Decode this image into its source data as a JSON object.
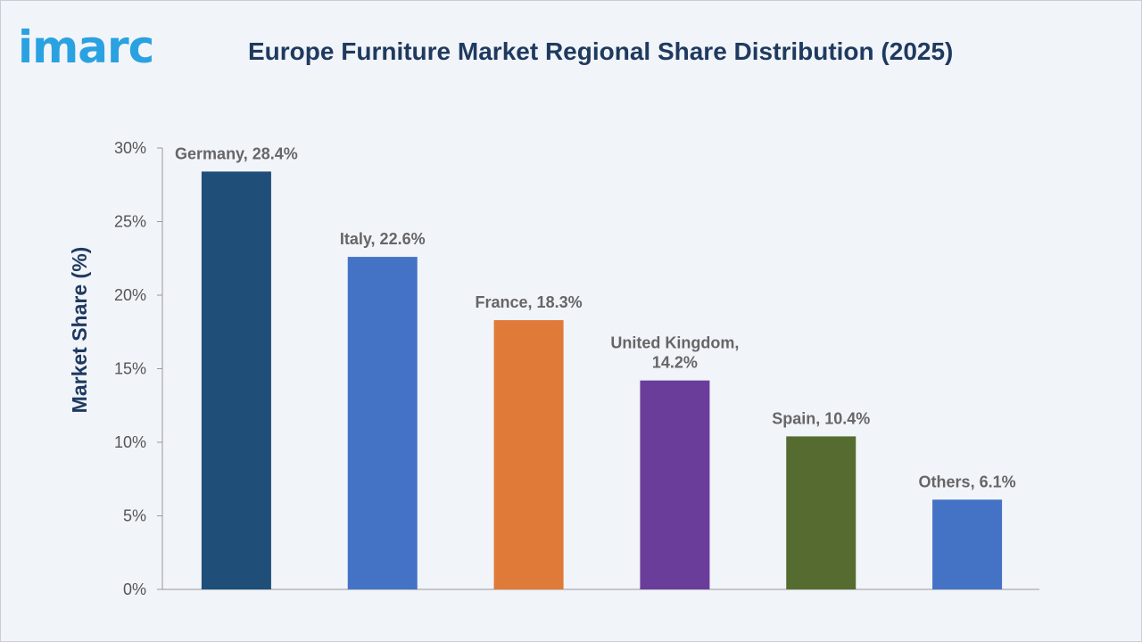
{
  "logo": {
    "text": "imarc",
    "color": "#2aa1e0"
  },
  "chart_data": {
    "type": "bar",
    "title": "Europe Furniture Market Regional Share Distribution (2025)",
    "xlabel": "",
    "ylabel": "Market Share (%)",
    "ylim": [
      0,
      30
    ],
    "yticks": [
      0,
      5,
      10,
      15,
      20,
      25,
      30
    ],
    "ytick_labels": [
      "0%",
      "5%",
      "10%",
      "15%",
      "20%",
      "25%",
      "30%"
    ],
    "grid": false,
    "legend": "none",
    "categories": [
      "Germany",
      "Italy",
      "France",
      "United Kingdom",
      "Spain",
      "Others"
    ],
    "values": [
      28.4,
      22.6,
      18.3,
      14.2,
      10.4,
      6.1
    ],
    "data_labels": [
      [
        "Germany, 28.4%"
      ],
      [
        "Italy, 22.6%"
      ],
      [
        "France, 18.3%"
      ],
      [
        "United Kingdom,",
        "14.2%"
      ],
      [
        "Spain, 10.4%"
      ],
      [
        "Others, 6.1%"
      ]
    ],
    "colors": [
      "#1f4e79",
      "#4472c4",
      "#e07a38",
      "#6a3d9a",
      "#556b2f",
      "#4472c4"
    ]
  }
}
